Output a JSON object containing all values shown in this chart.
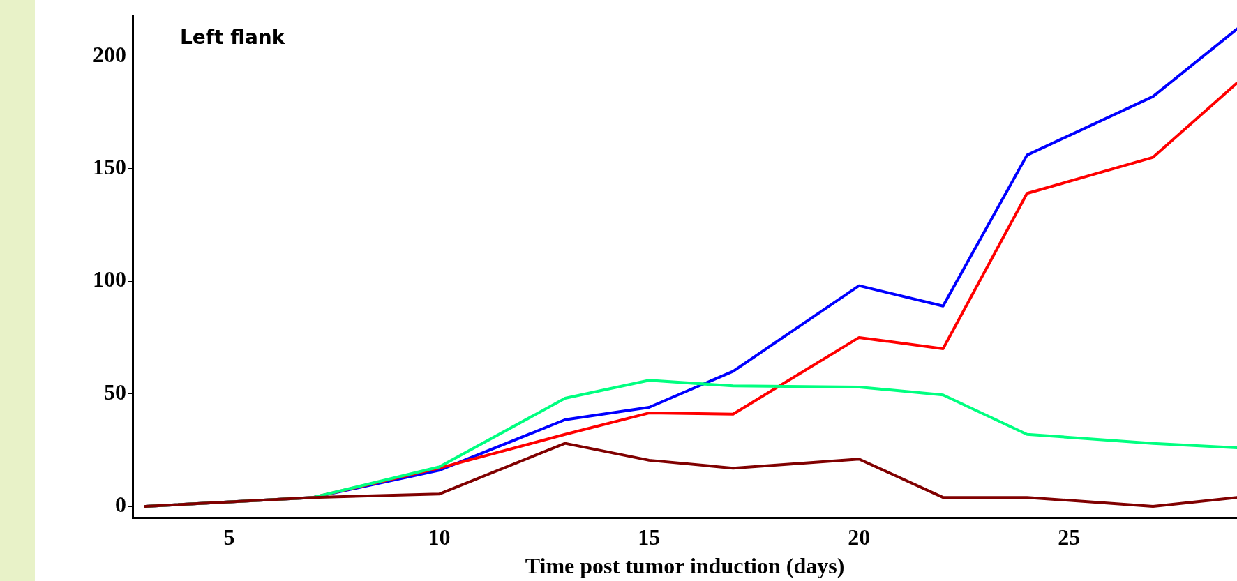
{
  "chart_data": {
    "type": "line",
    "xlabel": "Time post tumor induction (days)",
    "annotations": [
      "Left flank"
    ],
    "xlim": [
      2.7,
      29
    ],
    "xticks": [
      5,
      10,
      15,
      20,
      25
    ],
    "ylim": [
      -5,
      218
    ],
    "yticks": [
      0,
      50,
      100,
      150,
      200
    ],
    "grid": false,
    "legend": false,
    "marker": "none",
    "line_style": "solid",
    "series": [
      {
        "color": "#800000",
        "x": [
          3,
          7,
          10,
          13,
          15,
          17,
          20,
          22,
          24,
          27,
          29
        ],
        "values": [
          0,
          4,
          5.5,
          28,
          20.5,
          17,
          21,
          4,
          4,
          0,
          4
        ]
      },
      {
        "color": "#00ff80",
        "x": [
          3,
          7,
          10,
          13,
          15,
          17,
          20,
          22,
          24,
          27,
          29
        ],
        "values": [
          0,
          4,
          17.5,
          48,
          56,
          53.5,
          53,
          49.5,
          32,
          28,
          26
        ]
      },
      {
        "color": "#ff0000",
        "x": [
          3,
          7,
          10,
          13,
          15,
          17,
          20,
          22,
          24,
          27,
          29
        ],
        "values": [
          0,
          4,
          17,
          32,
          41.5,
          41,
          75,
          70,
          139,
          155,
          188
        ]
      },
      {
        "color": "#0000ff",
        "x": [
          3,
          7,
          10,
          13,
          15,
          17,
          20,
          22,
          24,
          27,
          29
        ],
        "values": [
          0,
          4,
          16,
          38.5,
          44,
          60,
          98,
          89,
          156,
          182,
          212
        ]
      }
    ]
  }
}
